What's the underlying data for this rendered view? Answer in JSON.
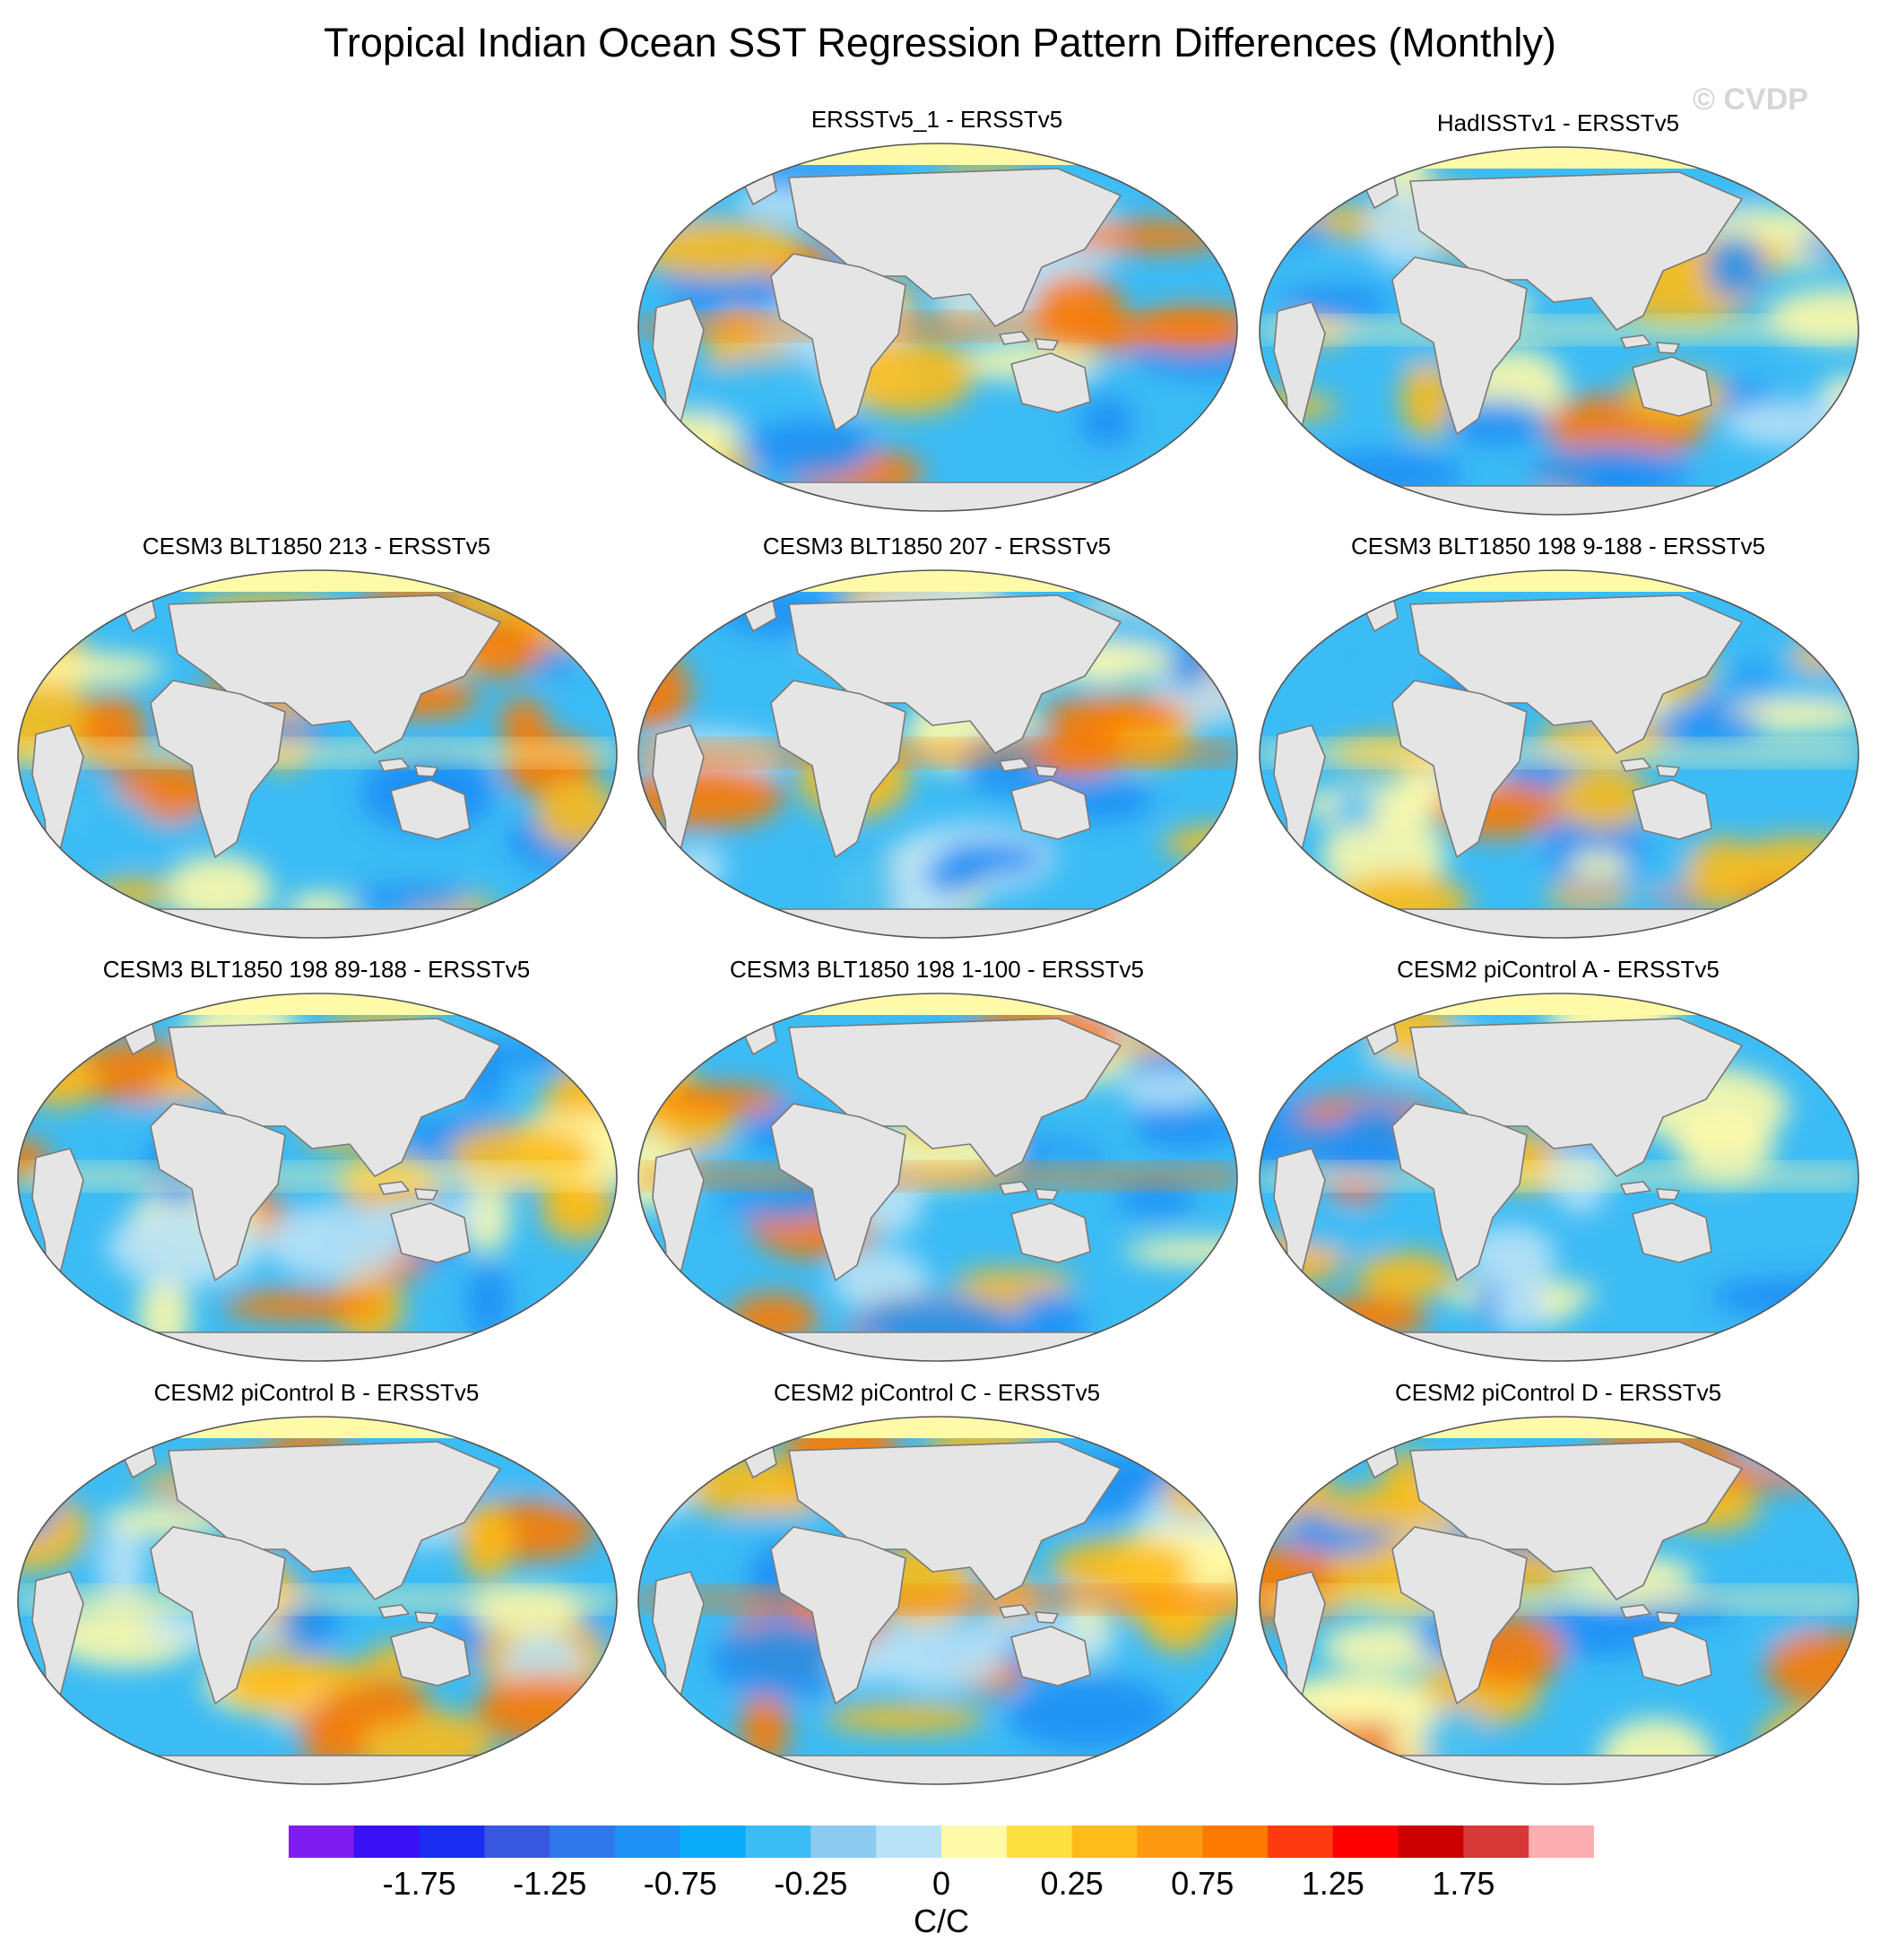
{
  "title": "Tropical Indian Ocean SST Regression Pattern Differences (Monthly)",
  "watermark": "© CVDP",
  "panels": [
    {
      "title": "ERSSTv5_1 - ERSSTv5"
    },
    {
      "title": "HadISSTv1 - ERSSTv5"
    },
    {
      "title": "CESM3 BLT1850 213 - ERSSTv5"
    },
    {
      "title": "CESM3 BLT1850 207 - ERSSTv5"
    },
    {
      "title": "CESM3 BLT1850 198 9-188 - ERSSTv5"
    },
    {
      "title": "CESM3 BLT1850 198 89-188 - ERSSTv5"
    },
    {
      "title": "CESM3 BLT1850 198 1-100 - ERSSTv5"
    },
    {
      "title": "CESM2 piControl A - ERSSTv5"
    },
    {
      "title": "CESM2 piControl B - ERSSTv5"
    },
    {
      "title": "CESM2 piControl C - ERSSTv5"
    },
    {
      "title": "CESM2 piControl D - ERSSTv5"
    }
  ],
  "colorbar": {
    "units": "C/C",
    "tick_labels": [
      "-1.75",
      "-1.25",
      "-0.75",
      "-0.25",
      "0",
      "0.25",
      "0.75",
      "1.25",
      "1.75"
    ],
    "colors": [
      "#7f1df0",
      "#3a10f5",
      "#1a2df0",
      "#3858e0",
      "#2f78ec",
      "#1f90f5",
      "#0aacfa",
      "#3cbcf5",
      "#8ccbef",
      "#b9e2f6",
      "#fffaa8",
      "#fde140",
      "#fdbc1a",
      "#fd9a10",
      "#fd7a00",
      "#fd3a10",
      "#fe0000",
      "#cc0000",
      "#d83838",
      "#fcaeb0"
    ]
  },
  "map_colors": {
    "land": "#e5e5e5",
    "coast": "#7a7a7a",
    "cool": "#3cbcf5",
    "deep_cool": "#1f90f5",
    "warm": "#fdbc1a",
    "hot": "#fd7a00",
    "neutral_warm": "#fffaa8",
    "neutral_cool": "#b9e2f6"
  }
}
